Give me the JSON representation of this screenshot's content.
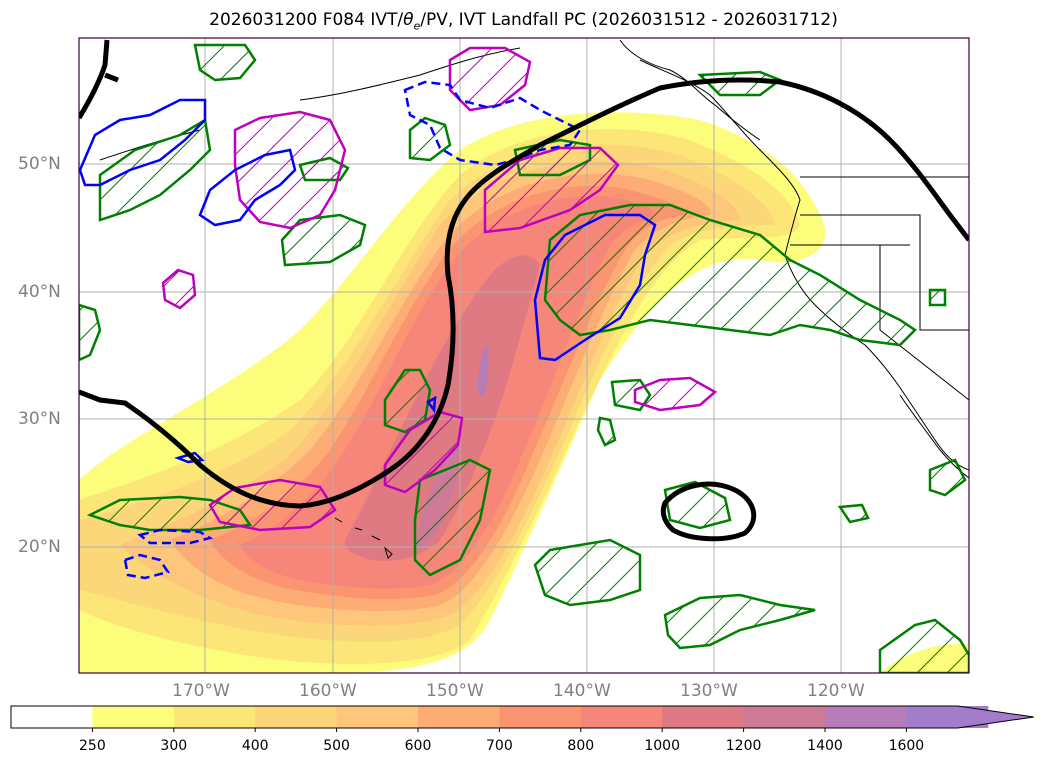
{
  "title": {
    "prefix": "2026031200 F084 IVT/",
    "theta": "θ",
    "theta_sub": "e",
    "suffix": "/PV, IVT Landfall PC (2026031512 - 2026031712)"
  },
  "lat_labels": [
    "50°N",
    "40°N",
    "30°N",
    "20°N"
  ],
  "lon_labels": [
    "170°W",
    "160°W",
    "150°W",
    "140°W",
    "130°W",
    "120°W"
  ],
  "colorbar": {
    "levels": [
      "250",
      "300",
      "400",
      "500",
      "600",
      "700",
      "800",
      "1000",
      "1200",
      "1400",
      "1600"
    ],
    "colors": [
      "#ffffff",
      "#fdfd7c",
      "#fde678",
      "#fcd77a",
      "#fdc67a",
      "#fdac76",
      "#fb9470",
      "#f68679",
      "#e07a82",
      "#cd7a99",
      "#b67bb9",
      "#a47ccc"
    ],
    "extend": "max"
  },
  "colors": {
    "coast": "#000000",
    "theta_contour": "#000000",
    "green_contour": "#008000",
    "blue_contour": "#0000ff",
    "magenta_contour": "#bf00bf",
    "grid": "#b0b0b0"
  }
}
